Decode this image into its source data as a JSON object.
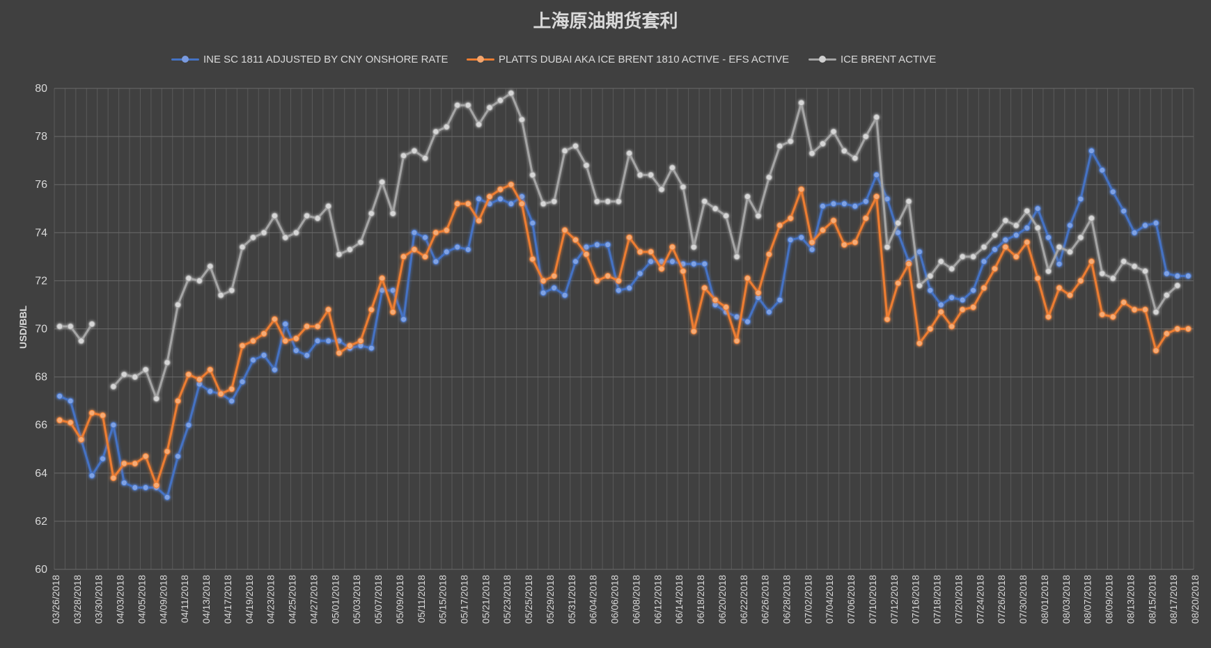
{
  "chart_data": {
    "type": "line",
    "title": "上海原油期货套利",
    "ylabel": "USD/BBL",
    "xlabel": "",
    "ylim": [
      60,
      80
    ],
    "ytick_step": 2,
    "grid": true,
    "legend_position": "top",
    "xtick_labels": [
      "03/26/2018",
      "03/28/2018",
      "03/30/2018",
      "04/03/2018",
      "04/05/2018",
      "04/09/2018",
      "04/11/2018",
      "04/13/2018",
      "04/17/2018",
      "04/19/2018",
      "04/23/2018",
      "04/25/2018",
      "04/27/2018",
      "05/01/2018",
      "05/03/2018",
      "05/07/2018",
      "05/09/2018",
      "05/11/2018",
      "05/15/2018",
      "05/17/2018",
      "05/21/2018",
      "05/23/2018",
      "05/25/2018",
      "05/29/2018",
      "05/31/2018",
      "06/04/2018",
      "06/06/2018",
      "06/08/2018",
      "06/12/2018",
      "06/14/2018",
      "06/18/2018",
      "06/20/2018",
      "06/22/2018",
      "06/26/2018",
      "06/28/2018",
      "07/02/2018",
      "07/04/2018",
      "07/06/2018",
      "07/10/2018",
      "07/12/2018",
      "07/16/2018",
      "07/18/2018",
      "07/20/2018",
      "07/24/2018",
      "07/26/2018",
      "07/30/2018",
      "08/01/2018",
      "08/03/2018",
      "08/07/2018",
      "08/09/2018",
      "08/13/2018",
      "08/15/2018",
      "08/17/2018",
      "08/20/2018"
    ],
    "series": [
      {
        "name": "INE SC 1811 ADJUSTED BY CNY ONSHORE RATE",
        "color": "#4472c4",
        "values": [
          67.2,
          67.0,
          65.4,
          63.9,
          64.6,
          66.0,
          63.6,
          63.4,
          63.4,
          63.4,
          63.0,
          64.7,
          66.0,
          67.7,
          67.4,
          67.3,
          67.0,
          67.8,
          68.7,
          68.9,
          68.3,
          70.2,
          69.1,
          68.9,
          69.5,
          69.5,
          69.5,
          69.2,
          69.3,
          69.2,
          71.6,
          71.6,
          70.4,
          74.0,
          73.8,
          72.8,
          73.2,
          73.4,
          73.3,
          75.4,
          75.2,
          75.4,
          75.2,
          75.5,
          74.4,
          71.5,
          71.7,
          71.4,
          72.8,
          73.4,
          73.5,
          73.5,
          71.6,
          71.7,
          72.3,
          72.8,
          72.8,
          72.8,
          72.7,
          72.7,
          72.7,
          71.0,
          70.7,
          70.5,
          70.3,
          71.3,
          70.7,
          71.2,
          73.7,
          73.8,
          73.3,
          75.1,
          75.2,
          75.2,
          75.1,
          75.3,
          76.4,
          75.4,
          74.0,
          72.8,
          73.2,
          71.6,
          71.0,
          71.3,
          71.2,
          71.6,
          72.8,
          73.3,
          73.7,
          73.9,
          74.2,
          75.0,
          73.8,
          72.7,
          74.3,
          75.4,
          77.4,
          76.6,
          75.7,
          74.9,
          74.0,
          74.3,
          74.4,
          72.3,
          72.2,
          72.2
        ]
      },
      {
        "name": "PLATTS DUBAI AKA ICE BRENT 1810 ACTIVE - EFS ACTIVE",
        "color": "#ed7d31",
        "values": [
          66.2,
          66.1,
          65.4,
          66.5,
          66.4,
          63.8,
          64.4,
          64.4,
          64.7,
          63.5,
          64.9,
          67.0,
          68.1,
          67.9,
          68.3,
          67.3,
          67.5,
          69.3,
          69.5,
          69.8,
          70.4,
          69.5,
          69.6,
          70.1,
          70.1,
          70.8,
          69.0,
          69.3,
          69.5,
          70.8,
          72.1,
          70.7,
          73.0,
          73.3,
          73.0,
          74.0,
          74.1,
          75.2,
          75.2,
          74.5,
          75.5,
          75.8,
          76.0,
          75.2,
          72.9,
          72.0,
          72.2,
          74.1,
          73.7,
          73.1,
          72.0,
          72.2,
          72.0,
          73.8,
          73.2,
          73.2,
          72.5,
          73.4,
          72.4,
          69.9,
          71.7,
          71.2,
          70.9,
          69.5,
          72.1,
          71.5,
          73.1,
          74.3,
          74.6,
          75.8,
          73.6,
          74.1,
          74.5,
          73.5,
          73.6,
          74.6,
          75.5,
          70.4,
          71.9,
          72.7,
          69.4,
          70.0,
          70.7,
          70.1,
          70.8,
          70.9,
          71.7,
          72.5,
          73.4,
          73.0,
          73.6,
          72.1,
          70.5,
          71.7,
          71.4,
          72.0,
          72.8,
          70.6,
          70.5,
          71.1,
          70.8,
          70.8,
          69.1,
          69.8,
          70.0,
          70.0
        ]
      },
      {
        "name": "ICE BRENT ACTIVE",
        "color": "#a5a5a5",
        "values": [
          70.1,
          70.1,
          69.5,
          70.2,
          null,
          67.6,
          68.1,
          68.0,
          68.3,
          67.1,
          68.6,
          71.0,
          72.1,
          72.0,
          72.6,
          71.4,
          71.6,
          73.4,
          73.8,
          74.0,
          74.7,
          73.8,
          74.0,
          74.7,
          74.6,
          75.1,
          73.1,
          73.3,
          73.6,
          74.8,
          76.1,
          74.8,
          77.2,
          77.4,
          77.1,
          78.2,
          78.4,
          79.3,
          79.3,
          78.5,
          79.2,
          79.5,
          79.8,
          78.7,
          76.4,
          75.2,
          75.3,
          77.4,
          77.6,
          76.8,
          75.3,
          75.3,
          75.3,
          77.3,
          76.4,
          76.4,
          75.8,
          76.7,
          75.9,
          73.4,
          75.3,
          75.0,
          74.7,
          73.0,
          75.5,
          74.7,
          76.3,
          77.6,
          77.8,
          79.4,
          77.3,
          77.7,
          78.2,
          77.4,
          77.1,
          78.0,
          78.8,
          73.4,
          74.4,
          75.3,
          71.8,
          72.2,
          72.8,
          72.5,
          73.0,
          73.0,
          73.4,
          73.9,
          74.5,
          74.3,
          74.9,
          74.2,
          72.4,
          73.4,
          73.2,
          73.8,
          74.6,
          72.3,
          72.1,
          72.8,
          72.6,
          72.4,
          70.7,
          71.4,
          71.8,
          null
        ]
      }
    ]
  }
}
